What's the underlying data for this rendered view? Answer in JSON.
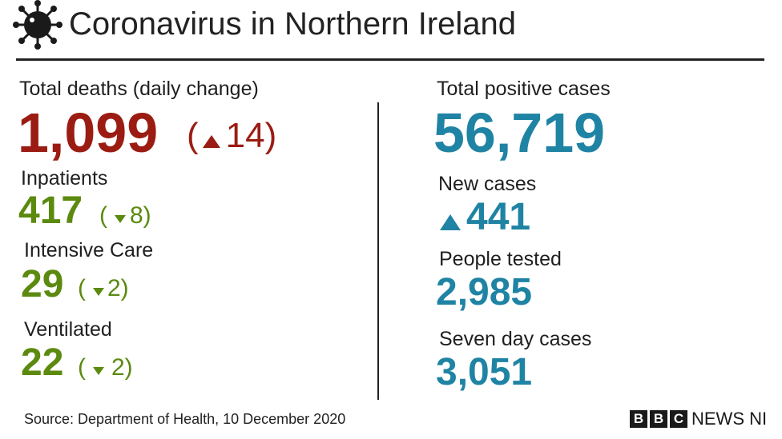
{
  "header": {
    "title": "Coronavirus in Northern Ireland",
    "icon": "virus-icon"
  },
  "left": {
    "deaths_label": "Total deaths (daily change)",
    "deaths_value": "1,099",
    "deaths_change_open": "(",
    "deaths_change_value": "14",
    "deaths_change_close": ")",
    "inpatients_label": "Inpatients",
    "inpatients_value": "417",
    "inpatients_change_open": "(",
    "inpatients_change_value": "8)",
    "icu_label": "Intensive Care",
    "icu_value": "29",
    "icu_change_open": "(",
    "icu_change_value": "2)",
    "vent_label": "Ventilated",
    "vent_value": "22",
    "vent_change_open": "(",
    "vent_change_value": "2)"
  },
  "right": {
    "total_cases_label": "Total positive cases",
    "total_cases_value": "56,719",
    "new_cases_label": "New cases",
    "new_cases_value": "441",
    "tested_label": "People tested",
    "tested_value": "2,985",
    "seven_day_label": "Seven day cases",
    "seven_day_value": "3,051"
  },
  "footer": {
    "source": "Source: Department of Health, 10 December 2020",
    "bbc_letters": [
      "B",
      "B",
      "C"
    ],
    "news_label": "NEWS NI"
  },
  "colors": {
    "deaths": "#9b1c12",
    "hospital": "#5b8a0f",
    "cases": "#1f83a4"
  }
}
